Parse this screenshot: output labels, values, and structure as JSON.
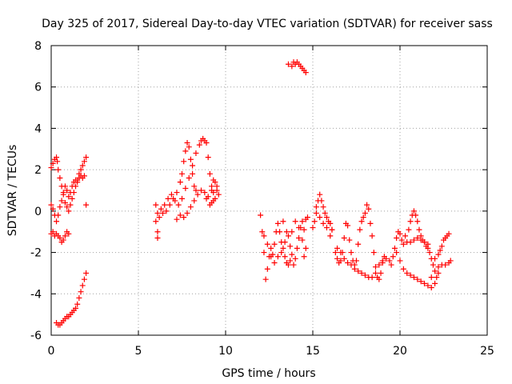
{
  "chart_data": {
    "type": "scatter",
    "title": "Day 325 of 2017, Sidereal Day-to-day VTEC variation (SDTVAR) for receiver sass",
    "xlabel": "GPS time / hours",
    "ylabel": "SDTVAR / TECUs",
    "xlim": [
      0,
      25
    ],
    "ylim": [
      -6,
      8
    ],
    "xticks": [
      "0",
      "5",
      "10",
      "15",
      "20",
      "25"
    ],
    "yticks": [
      "-6",
      "-4",
      "-2",
      "0",
      "2",
      "4",
      "6",
      "8"
    ],
    "grid": true,
    "marker": "+",
    "color": "#ff0000",
    "series": [
      {
        "name": "SDTVAR",
        "points": [
          [
            0.0,
            2.1
          ],
          [
            0.1,
            2.3
          ],
          [
            0.2,
            2.5
          ],
          [
            0.3,
            2.6
          ],
          [
            0.35,
            2.4
          ],
          [
            0.4,
            2.0
          ],
          [
            0.5,
            1.6
          ],
          [
            0.6,
            1.2
          ],
          [
            0.7,
            0.8
          ],
          [
            0.8,
            0.4
          ],
          [
            0.9,
            0.2
          ],
          [
            1.0,
            0.0
          ],
          [
            1.1,
            0.3
          ],
          [
            1.2,
            0.6
          ],
          [
            1.3,
            0.9
          ],
          [
            1.4,
            1.2
          ],
          [
            1.5,
            1.5
          ],
          [
            1.6,
            1.8
          ],
          [
            1.7,
            2.0
          ],
          [
            1.8,
            2.2
          ],
          [
            1.9,
            2.4
          ],
          [
            2.0,
            2.6
          ],
          [
            2.0,
            0.3
          ],
          [
            0.0,
            0.3
          ],
          [
            0.1,
            0.1
          ],
          [
            0.2,
            -0.2
          ],
          [
            0.3,
            -0.5
          ],
          [
            0.4,
            -0.2
          ],
          [
            0.5,
            0.2
          ],
          [
            0.6,
            0.5
          ],
          [
            0.7,
            0.9
          ],
          [
            0.8,
            1.2
          ],
          [
            0.9,
            1.0
          ],
          [
            1.0,
            0.7
          ],
          [
            1.1,
            0.9
          ],
          [
            1.2,
            1.2
          ],
          [
            1.3,
            1.4
          ],
          [
            1.4,
            1.5
          ],
          [
            1.5,
            1.4
          ],
          [
            1.6,
            1.6
          ],
          [
            1.7,
            1.7
          ],
          [
            1.8,
            1.6
          ],
          [
            1.9,
            1.7
          ],
          [
            0.0,
            -1.1
          ],
          [
            0.1,
            -1.0
          ],
          [
            0.2,
            -1.2
          ],
          [
            0.3,
            -1.1
          ],
          [
            0.4,
            -1.2
          ],
          [
            0.5,
            -1.3
          ],
          [
            0.6,
            -1.5
          ],
          [
            0.7,
            -1.4
          ],
          [
            0.8,
            -1.2
          ],
          [
            0.9,
            -1.0
          ],
          [
            1.0,
            -1.1
          ],
          [
            0.3,
            -5.4
          ],
          [
            0.4,
            -5.5
          ],
          [
            0.5,
            -5.5
          ],
          [
            0.6,
            -5.4
          ],
          [
            0.7,
            -5.3
          ],
          [
            0.8,
            -5.2
          ],
          [
            0.9,
            -5.1
          ],
          [
            1.0,
            -5.1
          ],
          [
            1.1,
            -5.0
          ],
          [
            1.2,
            -4.9
          ],
          [
            1.3,
            -4.8
          ],
          [
            1.4,
            -4.7
          ],
          [
            1.5,
            -4.5
          ],
          [
            1.6,
            -4.2
          ],
          [
            1.7,
            -3.9
          ],
          [
            1.8,
            -3.6
          ],
          [
            1.9,
            -3.3
          ],
          [
            2.0,
            -3.0
          ],
          [
            6.0,
            0.3
          ],
          [
            6.0,
            -0.5
          ],
          [
            6.1,
            -1.0
          ],
          [
            6.1,
            -1.3
          ],
          [
            6.2,
            -0.3
          ],
          [
            6.4,
            -0.1
          ],
          [
            6.6,
            0.0
          ],
          [
            6.8,
            0.3
          ],
          [
            7.0,
            0.6
          ],
          [
            7.2,
            0.9
          ],
          [
            7.4,
            1.4
          ],
          [
            7.5,
            1.8
          ],
          [
            7.6,
            2.4
          ],
          [
            7.7,
            2.9
          ],
          [
            7.8,
            3.3
          ],
          [
            7.9,
            3.1
          ],
          [
            8.0,
            2.5
          ],
          [
            8.1,
            1.8
          ],
          [
            8.2,
            1.2
          ],
          [
            8.3,
            1.0
          ],
          [
            6.1,
            -0.1
          ],
          [
            6.3,
            0.1
          ],
          [
            6.5,
            0.3
          ],
          [
            6.7,
            0.6
          ],
          [
            6.9,
            0.8
          ],
          [
            7.1,
            0.5
          ],
          [
            7.3,
            0.3
          ],
          [
            7.5,
            0.6
          ],
          [
            7.7,
            1.1
          ],
          [
            7.9,
            1.6
          ],
          [
            8.1,
            2.2
          ],
          [
            8.3,
            2.8
          ],
          [
            8.5,
            3.2
          ],
          [
            8.6,
            3.4
          ],
          [
            8.7,
            3.5
          ],
          [
            8.8,
            3.4
          ],
          [
            8.9,
            3.3
          ],
          [
            9.0,
            2.6
          ],
          [
            9.1,
            1.8
          ],
          [
            9.2,
            1.0
          ],
          [
            9.3,
            0.5
          ],
          [
            7.2,
            -0.4
          ],
          [
            7.4,
            -0.2
          ],
          [
            7.6,
            -0.3
          ],
          [
            7.8,
            -0.1
          ],
          [
            8.0,
            0.2
          ],
          [
            8.2,
            0.5
          ],
          [
            8.4,
            0.8
          ],
          [
            8.6,
            1.0
          ],
          [
            8.8,
            0.9
          ],
          [
            9.0,
            0.7
          ],
          [
            9.2,
            1.2
          ],
          [
            9.3,
            1.5
          ],
          [
            9.4,
            1.4
          ],
          [
            9.5,
            1.0
          ],
          [
            9.6,
            0.8
          ],
          [
            9.5,
            1.2
          ],
          [
            9.4,
            0.6
          ],
          [
            9.3,
            0.9
          ],
          [
            9.2,
            0.4
          ],
          [
            9.1,
            0.3
          ],
          [
            8.9,
            0.6
          ],
          [
            12.0,
            -0.2
          ],
          [
            12.1,
            -1.0
          ],
          [
            12.2,
            -2.0
          ],
          [
            12.3,
            -3.3
          ],
          [
            12.4,
            -2.8
          ],
          [
            12.5,
            -2.2
          ],
          [
            12.6,
            -1.8
          ],
          [
            12.7,
            -2.1
          ],
          [
            12.8,
            -1.6
          ],
          [
            12.9,
            -1.0
          ],
          [
            13.0,
            -0.6
          ],
          [
            13.1,
            -1.0
          ],
          [
            13.2,
            -1.5
          ],
          [
            13.3,
            -1.8
          ],
          [
            13.4,
            -2.2
          ],
          [
            13.5,
            -2.5
          ],
          [
            13.6,
            -2.6
          ],
          [
            13.7,
            -2.4
          ],
          [
            13.8,
            -2.1
          ],
          [
            13.9,
            -2.6
          ],
          [
            14.0,
            -2.3
          ],
          [
            14.1,
            -1.8
          ],
          [
            14.2,
            -1.3
          ],
          [
            14.3,
            -0.8
          ],
          [
            14.4,
            -0.5
          ],
          [
            14.5,
            -0.9
          ],
          [
            14.6,
            -0.4
          ],
          [
            14.7,
            -0.3
          ],
          [
            12.2,
            -1.2
          ],
          [
            12.4,
            -1.6
          ],
          [
            12.6,
            -2.2
          ],
          [
            12.8,
            -2.5
          ],
          [
            13.0,
            -2.2
          ],
          [
            13.2,
            -2.0
          ],
          [
            13.4,
            -1.5
          ],
          [
            13.6,
            -1.2
          ],
          [
            13.8,
            -1.0
          ],
          [
            14.0,
            -0.5
          ],
          [
            14.2,
            -0.8
          ],
          [
            14.4,
            -1.4
          ],
          [
            14.6,
            -1.8
          ],
          [
            14.5,
            -2.2
          ],
          [
            13.3,
            -0.5
          ],
          [
            13.5,
            -1.0
          ],
          [
            13.7,
            -1.7
          ],
          [
            13.6,
            7.1
          ],
          [
            13.8,
            7.0
          ],
          [
            13.9,
            7.2
          ],
          [
            14.0,
            7.1
          ],
          [
            14.1,
            7.2
          ],
          [
            14.2,
            7.1
          ],
          [
            14.3,
            7.0
          ],
          [
            14.4,
            6.9
          ],
          [
            14.5,
            6.8
          ],
          [
            14.6,
            6.7
          ],
          [
            15.0,
            -0.8
          ],
          [
            15.1,
            -0.5
          ],
          [
            15.2,
            0.2
          ],
          [
            15.3,
            0.5
          ],
          [
            15.4,
            0.8
          ],
          [
            15.5,
            0.5
          ],
          [
            15.6,
            0.2
          ],
          [
            15.7,
            -0.1
          ],
          [
            15.8,
            -0.3
          ],
          [
            15.9,
            -0.5
          ],
          [
            16.0,
            -0.6
          ],
          [
            16.1,
            -0.9
          ],
          [
            15.2,
            -0.1
          ],
          [
            15.4,
            -0.3
          ],
          [
            15.6,
            -0.6
          ],
          [
            15.8,
            -0.8
          ],
          [
            16.0,
            -1.2
          ],
          [
            16.1,
            -0.9
          ],
          [
            16.3,
            -2.0
          ],
          [
            16.4,
            -2.3
          ],
          [
            16.5,
            -2.5
          ],
          [
            16.6,
            -2.4
          ],
          [
            16.7,
            -2.0
          ],
          [
            16.8,
            -1.3
          ],
          [
            16.9,
            -0.6
          ],
          [
            17.0,
            -0.7
          ],
          [
            17.1,
            -1.4
          ],
          [
            17.2,
            -2.0
          ],
          [
            17.3,
            -2.4
          ],
          [
            17.4,
            -2.6
          ],
          [
            17.5,
            -2.4
          ],
          [
            17.6,
            -1.6
          ],
          [
            17.7,
            -0.9
          ],
          [
            17.8,
            -0.5
          ],
          [
            17.9,
            -0.3
          ],
          [
            18.0,
            -0.1
          ],
          [
            18.1,
            0.3
          ],
          [
            18.2,
            0.1
          ],
          [
            18.3,
            -0.6
          ],
          [
            18.4,
            -1.2
          ],
          [
            18.5,
            -2.0
          ],
          [
            18.6,
            -2.7
          ],
          [
            18.7,
            -3.2
          ],
          [
            18.8,
            -3.3
          ],
          [
            18.9,
            -3.0
          ],
          [
            19.0,
            -2.5
          ],
          [
            19.1,
            -2.2
          ],
          [
            16.4,
            -1.8
          ],
          [
            16.6,
            -2.0
          ],
          [
            16.8,
            -2.3
          ],
          [
            17.0,
            -2.5
          ],
          [
            17.2,
            -2.6
          ],
          [
            17.4,
            -2.8
          ],
          [
            17.6,
            -2.9
          ],
          [
            17.8,
            -3.0
          ],
          [
            18.0,
            -3.1
          ],
          [
            18.2,
            -3.2
          ],
          [
            18.4,
            -3.2
          ],
          [
            18.6,
            -3.0
          ],
          [
            18.8,
            -2.6
          ],
          [
            19.0,
            -2.4
          ],
          [
            19.2,
            -2.3
          ],
          [
            19.4,
            -2.4
          ],
          [
            19.5,
            -2.6
          ],
          [
            19.6,
            -2.2
          ],
          [
            19.7,
            -1.8
          ],
          [
            19.8,
            -1.3
          ],
          [
            19.9,
            -1.0
          ],
          [
            20.0,
            -1.1
          ],
          [
            20.1,
            -1.4
          ],
          [
            20.3,
            -1.2
          ],
          [
            20.5,
            -0.9
          ],
          [
            20.6,
            -0.5
          ],
          [
            20.7,
            -0.2
          ],
          [
            20.8,
            0.0
          ],
          [
            20.9,
            -0.2
          ],
          [
            21.0,
            -0.5
          ],
          [
            21.1,
            -0.9
          ],
          [
            21.2,
            -1.2
          ],
          [
            21.3,
            -1.4
          ],
          [
            21.4,
            -1.5
          ],
          [
            21.5,
            -1.7
          ],
          [
            21.6,
            -1.8
          ],
          [
            21.7,
            -2.0
          ],
          [
            21.8,
            -2.3
          ],
          [
            19.8,
            -2.0
          ],
          [
            20.0,
            -2.4
          ],
          [
            20.2,
            -2.8
          ],
          [
            20.4,
            -3.0
          ],
          [
            20.6,
            -3.1
          ],
          [
            20.8,
            -3.2
          ],
          [
            21.0,
            -3.3
          ],
          [
            21.2,
            -3.4
          ],
          [
            21.4,
            -3.5
          ],
          [
            21.6,
            -3.6
          ],
          [
            21.8,
            -3.7
          ],
          [
            22.0,
            -3.5
          ],
          [
            22.1,
            -3.2
          ],
          [
            22.2,
            -3.0
          ],
          [
            20.2,
            -1.6
          ],
          [
            20.4,
            -1.5
          ],
          [
            20.6,
            -1.5
          ],
          [
            20.8,
            -1.4
          ],
          [
            21.0,
            -1.3
          ],
          [
            21.2,
            -1.4
          ],
          [
            21.4,
            -1.5
          ],
          [
            21.6,
            -1.6
          ],
          [
            21.9,
            -2.6
          ],
          [
            22.0,
            -2.3
          ],
          [
            22.2,
            -2.1
          ],
          [
            22.3,
            -1.9
          ],
          [
            22.4,
            -1.7
          ],
          [
            22.5,
            -1.4
          ],
          [
            22.6,
            -1.3
          ],
          [
            22.7,
            -1.2
          ],
          [
            22.8,
            -1.1
          ],
          [
            21.8,
            -3.2
          ],
          [
            22.0,
            -2.9
          ],
          [
            22.2,
            -2.7
          ],
          [
            22.4,
            -2.6
          ],
          [
            22.6,
            -2.6
          ],
          [
            22.8,
            -2.5
          ],
          [
            22.9,
            -2.4
          ]
        ]
      }
    ]
  }
}
